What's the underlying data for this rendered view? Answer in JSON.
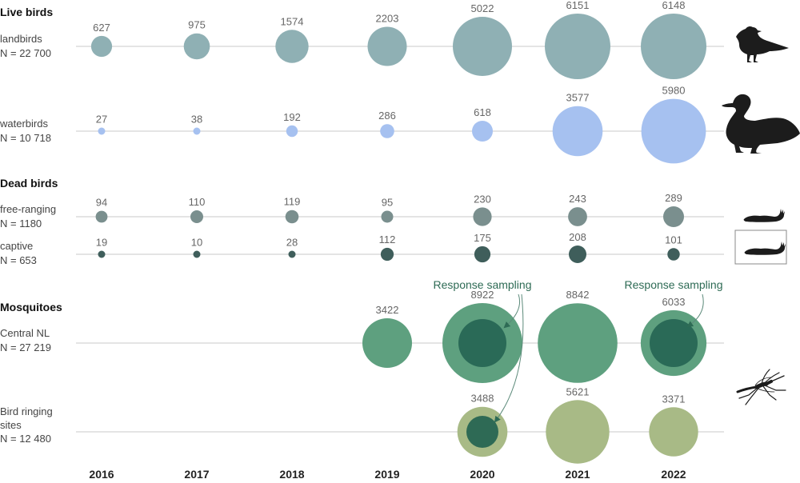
{
  "chart_data": {
    "type": "bubble",
    "title": "",
    "years": [
      "2016",
      "2017",
      "2018",
      "2019",
      "2020",
      "2021",
      "2022"
    ],
    "groups": [
      {
        "title": "Live birds",
        "rows": [
          {
            "id": "landbirds",
            "label": "landbirds",
            "n_label": "N = 22 700",
            "color": "#8fb0b4",
            "values": [
              627,
              975,
              1574,
              2203,
              5022,
              6151,
              6148
            ],
            "icon": "bird-icon"
          },
          {
            "id": "waterbirds",
            "label": "waterbirds",
            "n_label": "N = 10 718",
            "color": "#a6c1f0",
            "values": [
              27,
              38,
              192,
              286,
              618,
              3577,
              5980
            ],
            "icon": "duck-icon"
          }
        ]
      },
      {
        "title": "Dead birds",
        "rows": [
          {
            "id": "free-ranging",
            "label": "free-ranging",
            "n_label": "N = 1180",
            "color": "#7a8f8e",
            "values": [
              94,
              110,
              119,
              95,
              230,
              243,
              289
            ],
            "icon": "dead-bird-icon"
          },
          {
            "id": "captive",
            "label": "captive",
            "n_label": "N = 653",
            "color": "#3f5e5b",
            "values": [
              19,
              10,
              28,
              112,
              175,
              208,
              101
            ],
            "icon": "dead-bird-captive-icon"
          }
        ]
      },
      {
        "title": "Mosquitoes",
        "rows": [
          {
            "id": "central-nl",
            "label": "Central NL",
            "n_label": "N = 27 219",
            "color": "#5ea07f",
            "inner_color": "#2a6a57",
            "values": [
              null,
              null,
              null,
              3422,
              8922,
              8842,
              6033
            ],
            "response_sampling_years": [
              "2020",
              "2022"
            ]
          },
          {
            "id": "bird-ringing",
            "label": "Bird ringing",
            "label2": "sites",
            "n_label": "N = 12 480",
            "color": "#a8ba86",
            "inner_color": "#2e6a55",
            "values": [
              null,
              null,
              null,
              null,
              3488,
              5621,
              3371
            ],
            "response_sampling_years": [
              "2020"
            ],
            "icon": "mosquito-icon"
          }
        ]
      }
    ],
    "annotations": [
      "Response sampling",
      "Response sampling"
    ]
  }
}
